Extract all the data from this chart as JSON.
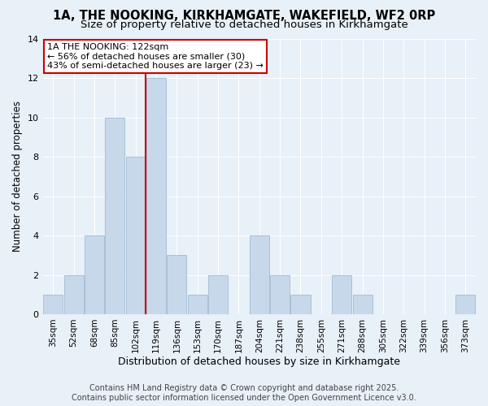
{
  "title": "1A, THE NOOKING, KIRKHAMGATE, WAKEFIELD, WF2 0RP",
  "subtitle": "Size of property relative to detached houses in Kirkhamgate",
  "xlabel": "Distribution of detached houses by size in Kirkhamgate",
  "ylabel": "Number of detached properties",
  "categories": [
    "35sqm",
    "52sqm",
    "68sqm",
    "85sqm",
    "102sqm",
    "119sqm",
    "136sqm",
    "153sqm",
    "170sqm",
    "187sqm",
    "204sqm",
    "221sqm",
    "238sqm",
    "255sqm",
    "271sqm",
    "288sqm",
    "305sqm",
    "322sqm",
    "339sqm",
    "356sqm",
    "373sqm"
  ],
  "values": [
    1,
    2,
    4,
    10,
    8,
    12,
    3,
    1,
    2,
    0,
    4,
    2,
    1,
    0,
    2,
    1,
    0,
    0,
    0,
    0,
    1
  ],
  "bar_color": "#c8d8eb",
  "bar_edge_color": "#a8c0d8",
  "line_color": "#cc0000",
  "line_x_index": 4.5,
  "annotation_line1": "1A THE NOOKING: 122sqm",
  "annotation_line2": "← 56% of detached houses are smaller (30)",
  "annotation_line3": "43% of semi-detached houses are larger (23) →",
  "annotation_box_color": "#ffffff",
  "annotation_box_edge_color": "#cc0000",
  "ylim": [
    0,
    14
  ],
  "yticks": [
    0,
    2,
    4,
    6,
    8,
    10,
    12,
    14
  ],
  "footer_line1": "Contains HM Land Registry data © Crown copyright and database right 2025.",
  "footer_line2": "Contains public sector information licensed under the Open Government Licence v3.0.",
  "bg_color": "#e8f0f8",
  "grid_color": "#ffffff",
  "title_fontsize": 10.5,
  "subtitle_fontsize": 9.5,
  "ylabel_fontsize": 8.5,
  "xlabel_fontsize": 9,
  "tick_fontsize": 7.5,
  "footer_fontsize": 7,
  "annotation_fontsize": 8
}
